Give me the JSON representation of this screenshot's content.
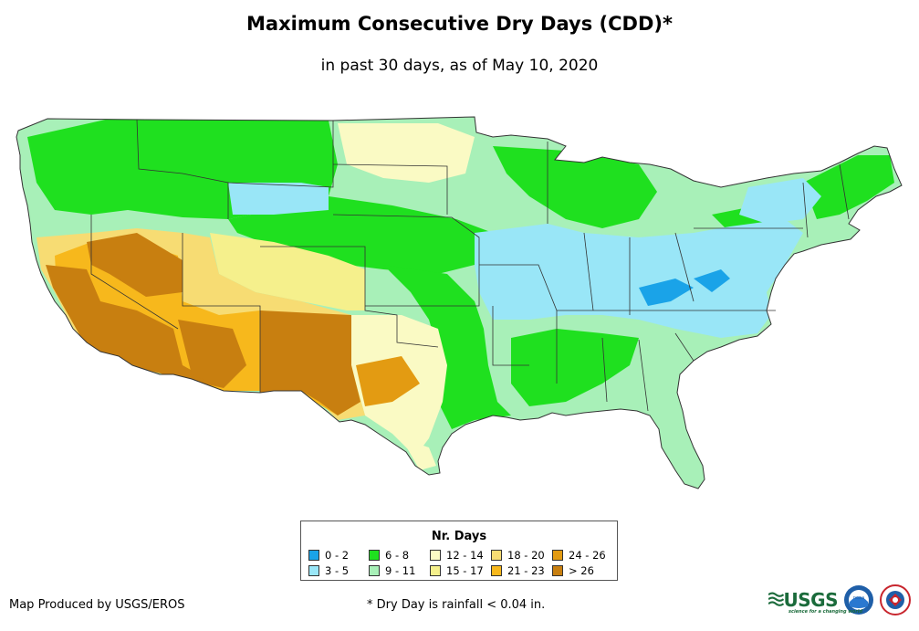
{
  "title": "Maximum Consecutive Dry Days (CDD)*",
  "subtitle": "in past 30 days, as of May 10, 2020",
  "legend": {
    "title": "Nr. Days",
    "items": [
      {
        "label": "0 - 2",
        "color": "#1aa3e8"
      },
      {
        "label": "3 - 5",
        "color": "#99e6f7"
      },
      {
        "label": "6 - 8",
        "color": "#1fe01f"
      },
      {
        "label": "9 - 11",
        "color": "#a8f0b8"
      },
      {
        "label": "12 - 14",
        "color": "#fafac4"
      },
      {
        "label": "15 - 17",
        "color": "#f5f08c"
      },
      {
        "label": "18 - 20",
        "color": "#f7dc73"
      },
      {
        "label": "21 - 23",
        "color": "#f7b81c"
      },
      {
        "label": "24 - 26",
        "color": "#e39b12"
      },
      {
        "label": "> 26",
        "color": "#c87f10"
      }
    ]
  },
  "credit": "Map Produced by USGS/EROS",
  "footnote": "* Dry Day is rainfall < 0.04 in.",
  "logos": {
    "usgs": "USGS",
    "usgs_tagline": "science for a changing world",
    "noaa": "noaa"
  },
  "colors": {
    "border": "#333333",
    "water": "#ffffff"
  }
}
